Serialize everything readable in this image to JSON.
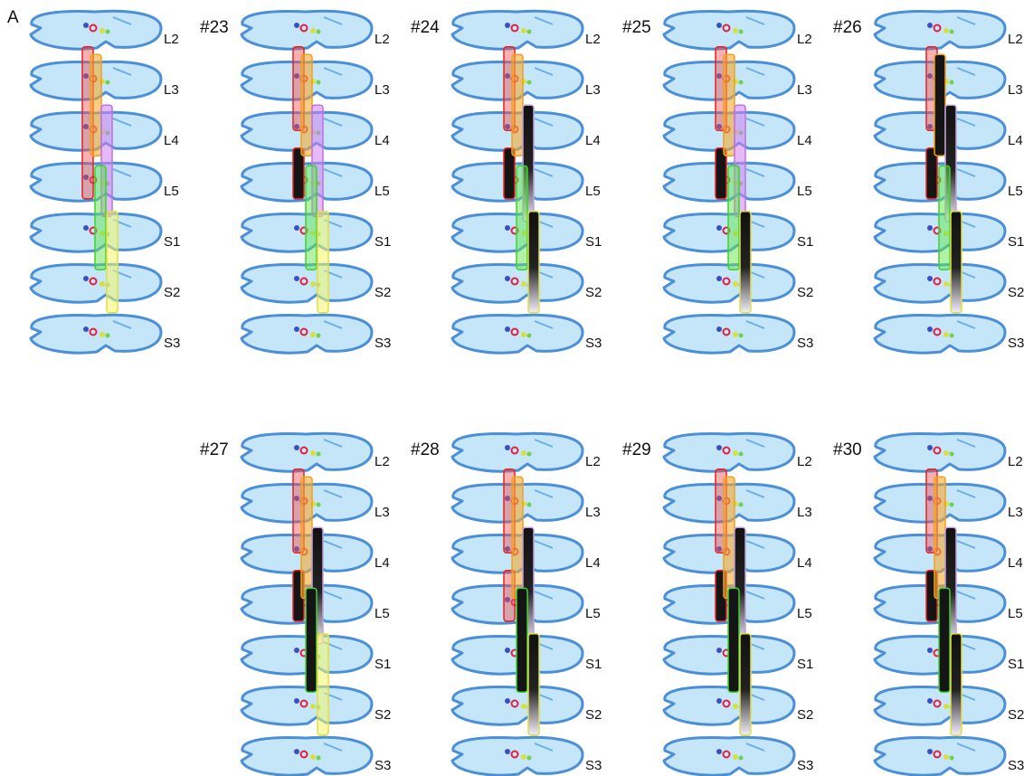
{
  "figure_label": "A",
  "panels": [
    {
      "levels": [
        "L2",
        "L3",
        "L4",
        "L5",
        "S1",
        "S2",
        "S3"
      ]
    },
    {
      "label": "#23",
      "levels": [
        "L2",
        "L3",
        "L4",
        "L5",
        "S1",
        "S2",
        "S3"
      ]
    },
    {
      "label": "#24",
      "levels": [
        "L2",
        "L3",
        "L4",
        "L5",
        "S1",
        "S2",
        "S3"
      ]
    },
    {
      "label": "#25",
      "levels": [
        "L2",
        "L3",
        "L4",
        "L5",
        "S1",
        "S2",
        "S3"
      ]
    },
    {
      "label": "#26",
      "levels": [
        "L2",
        "L3",
        "L4",
        "L5",
        "S1",
        "S2",
        "S3"
      ]
    },
    {
      "label": "#27",
      "levels": [
        "L2",
        "L3",
        "L4",
        "L5",
        "S1",
        "S2",
        "S3"
      ]
    },
    {
      "label": "#28",
      "levels": [
        "L2",
        "L3",
        "L4",
        "L5",
        "S1",
        "S2",
        "S3"
      ]
    },
    {
      "label": "#29",
      "levels": [
        "L2",
        "L3",
        "L4",
        "L5",
        "S1",
        "S2",
        "S3"
      ]
    },
    {
      "label": "#30",
      "levels": [
        "L2",
        "L3",
        "L4",
        "L5",
        "S1",
        "S2",
        "S3"
      ]
    }
  ]
}
